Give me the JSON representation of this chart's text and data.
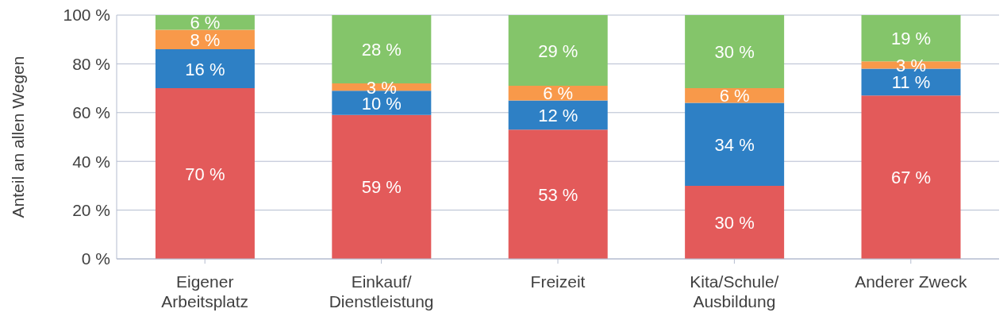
{
  "chart_data": {
    "type": "bar",
    "stacked": true,
    "ylabel": "Anteil an allen Wegen",
    "categories": [
      "Eigener Arbeitsplatz",
      "Einkauf/Dienstleistung",
      "Freizeit",
      "Kita/Schule/Ausbildung",
      "Anderer Zweck"
    ],
    "series": [
      {
        "color": "#e35a5a",
        "values": [
          70,
          59,
          53,
          30,
          67
        ],
        "value_labels": [
          "70 %",
          "59 %",
          "53 %",
          "30 %",
          "67 %"
        ]
      },
      {
        "color": "#2e80c5",
        "values": [
          16,
          10,
          12,
          34,
          11
        ],
        "value_labels": [
          "16 %",
          "10 %",
          "12 %",
          "34 %",
          "11 %"
        ]
      },
      {
        "color": "#f8994a",
        "values": [
          8,
          3,
          6,
          6,
          3
        ],
        "value_labels": [
          "8 %",
          "3 %",
          "6 %",
          "6 %",
          "3 %"
        ]
      },
      {
        "color": "#84c56a",
        "values": [
          6,
          28,
          29,
          30,
          19
        ],
        "value_labels": [
          "6 %",
          "28 %",
          "29 %",
          "30 %",
          "19 %"
        ]
      }
    ],
    "ylim": [
      0,
      100
    ],
    "yticks": [
      {
        "value": 0,
        "label": "0 %"
      },
      {
        "value": 20,
        "label": "20 %"
      },
      {
        "value": 40,
        "label": "40 %"
      },
      {
        "value": 60,
        "label": "60 %"
      },
      {
        "value": 80,
        "label": "80 %"
      },
      {
        "value": 100,
        "label": "100 %"
      }
    ],
    "grid": "y",
    "legend": false
  }
}
